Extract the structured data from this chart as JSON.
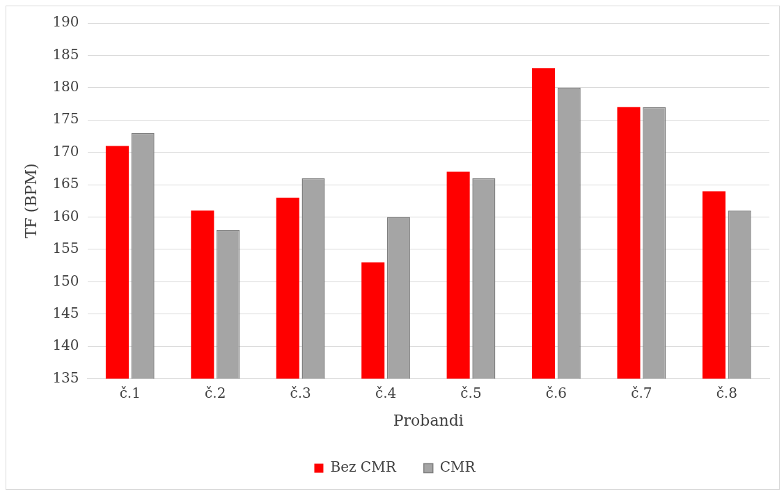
{
  "chart_data": {
    "type": "bar",
    "xlabel": "Probandi",
    "ylabel": "TF (BPM)",
    "categories": [
      "č.1",
      "č.2",
      "č.3",
      "č.4",
      "č.5",
      "č.6",
      "č.7",
      "č.8"
    ],
    "series": [
      {
        "name": "Bez CMR",
        "color": "#ff0000",
        "values": [
          171,
          161,
          163,
          153,
          167,
          183,
          177,
          164
        ]
      },
      {
        "name": "CMR",
        "color": "#a5a5a5",
        "values": [
          173,
          158,
          166,
          160,
          166,
          180,
          177,
          161
        ]
      }
    ],
    "ylim": [
      135,
      190
    ],
    "yticks": [
      135,
      140,
      145,
      150,
      155,
      160,
      165,
      170,
      175,
      180,
      185,
      190
    ],
    "grid": "y",
    "legend": "bottom"
  }
}
